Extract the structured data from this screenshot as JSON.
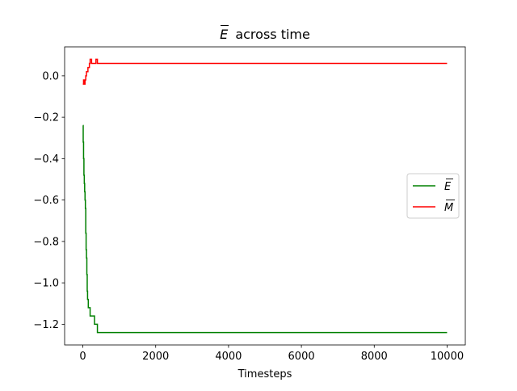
{
  "chart_data": {
    "type": "line",
    "title": "E across time",
    "title_symbol": "E",
    "title_rest": "across time",
    "xlabel": "Timesteps",
    "ylabel": "",
    "xlim": [
      -500,
      10500
    ],
    "ylim": [
      -1.3,
      0.14
    ],
    "xticks": [
      0,
      2000,
      4000,
      6000,
      8000,
      10000
    ],
    "xtick_labels": [
      "0",
      "2000",
      "4000",
      "6000",
      "8000",
      "10000"
    ],
    "yticks": [
      0.0,
      -0.2,
      -0.4,
      -0.6,
      -0.8,
      -1.0,
      -1.2
    ],
    "ytick_labels": [
      "0.0",
      "−0.2",
      "−0.4",
      "−0.6",
      "−0.8",
      "−1.0",
      "−1.2"
    ],
    "grid": false,
    "legend_position": "right",
    "series": [
      {
        "name": "E",
        "color": "#008000",
        "x": [
          0,
          10,
          20,
          30,
          40,
          50,
          60,
          70,
          80,
          90,
          100,
          110,
          120,
          130,
          150,
          170,
          200,
          240,
          280,
          320,
          360,
          400,
          10000
        ],
        "y": [
          -0.24,
          -0.32,
          -0.4,
          -0.48,
          -0.52,
          -0.56,
          -0.6,
          -0.64,
          -0.76,
          -0.84,
          -0.88,
          -0.96,
          -1.04,
          -1.08,
          -1.12,
          -1.12,
          -1.16,
          -1.16,
          -1.16,
          -1.2,
          -1.2,
          -1.24,
          -1.24
        ]
      },
      {
        "name": "M",
        "color": "#ff0000",
        "x": [
          0,
          20,
          40,
          60,
          80,
          100,
          120,
          140,
          160,
          180,
          200,
          240,
          280,
          320,
          360,
          400,
          10000
        ],
        "y": [
          -0.04,
          -0.02,
          -0.04,
          -0.02,
          0.0,
          0.02,
          0.02,
          0.04,
          0.04,
          0.06,
          0.08,
          0.06,
          0.06,
          0.06,
          0.08,
          0.06,
          0.06
        ]
      }
    ]
  }
}
